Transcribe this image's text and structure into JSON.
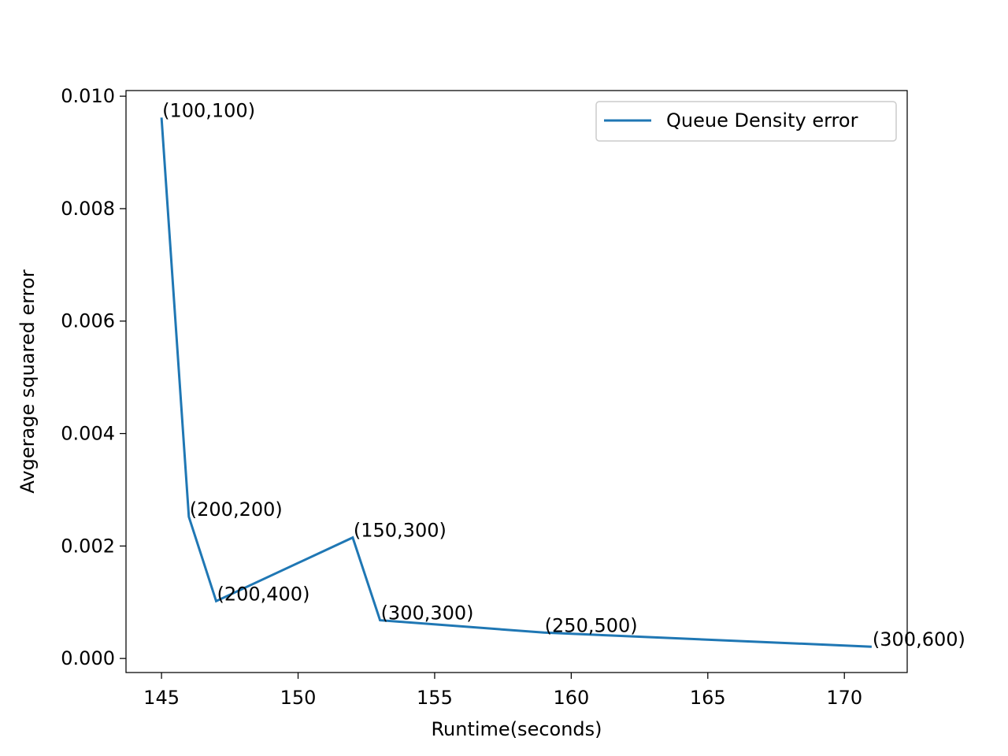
{
  "chart_data": {
    "type": "line",
    "title": "",
    "xlabel": "Runtime(seconds)",
    "ylabel": "Avgerage squared error",
    "xlim": [
      143.7,
      172.3
    ],
    "ylim": [
      -0.00025,
      0.0101
    ],
    "xticks": [
      145,
      150,
      155,
      160,
      165,
      170
    ],
    "yticks": [
      0.0,
      0.002,
      0.004,
      0.006,
      0.008,
      0.01
    ],
    "xtick_labels": [
      "145",
      "150",
      "155",
      "160",
      "165",
      "170"
    ],
    "ytick_labels": [
      "0.000",
      "0.002",
      "0.004",
      "0.006",
      "0.008",
      "0.010"
    ],
    "grid": false,
    "legend": {
      "position": "upper right",
      "entries": [
        "Queue Density error"
      ]
    },
    "series": [
      {
        "name": "Queue Density error",
        "color": "#1f77b4",
        "x": [
          145,
          146,
          147,
          152,
          153,
          159,
          171
        ],
        "y": [
          0.00962,
          0.00252,
          0.00102,
          0.00215,
          0.00068,
          0.00046,
          0.00021
        ],
        "point_labels": [
          "(100,100)",
          "(200,200)",
          "(200,400)",
          "(150,300)",
          "(300,300)",
          "(250,500)",
          "(300,600)"
        ]
      }
    ]
  }
}
